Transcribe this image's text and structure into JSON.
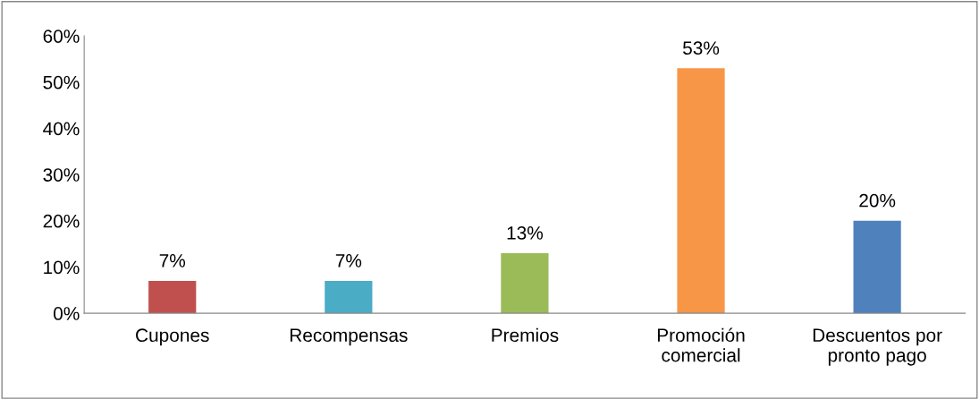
{
  "chart_data": {
    "type": "bar",
    "categories": [
      "Cupones",
      "Recompensas",
      "Premios",
      "Promoción\ncomercial",
      "Descuentos por\npronto pago"
    ],
    "values": [
      7,
      7,
      13,
      53,
      20
    ],
    "colors": [
      "#c0504d",
      "#4bacc6",
      "#9bbb59",
      "#f79646",
      "#4f81bd"
    ],
    "value_labels": [
      "7%",
      "7%",
      "13%",
      "53%",
      "20%"
    ],
    "ylim": [
      0,
      60
    ],
    "yticks": [
      {
        "value": 0,
        "label": "0%"
      },
      {
        "value": 10,
        "label": "10%"
      },
      {
        "value": 20,
        "label": "20%"
      },
      {
        "value": 30,
        "label": "30%"
      },
      {
        "value": 40,
        "label": "40%"
      },
      {
        "value": 50,
        "label": "50%"
      },
      {
        "value": 60,
        "label": "60%"
      }
    ],
    "grid": false,
    "legend": false
  }
}
